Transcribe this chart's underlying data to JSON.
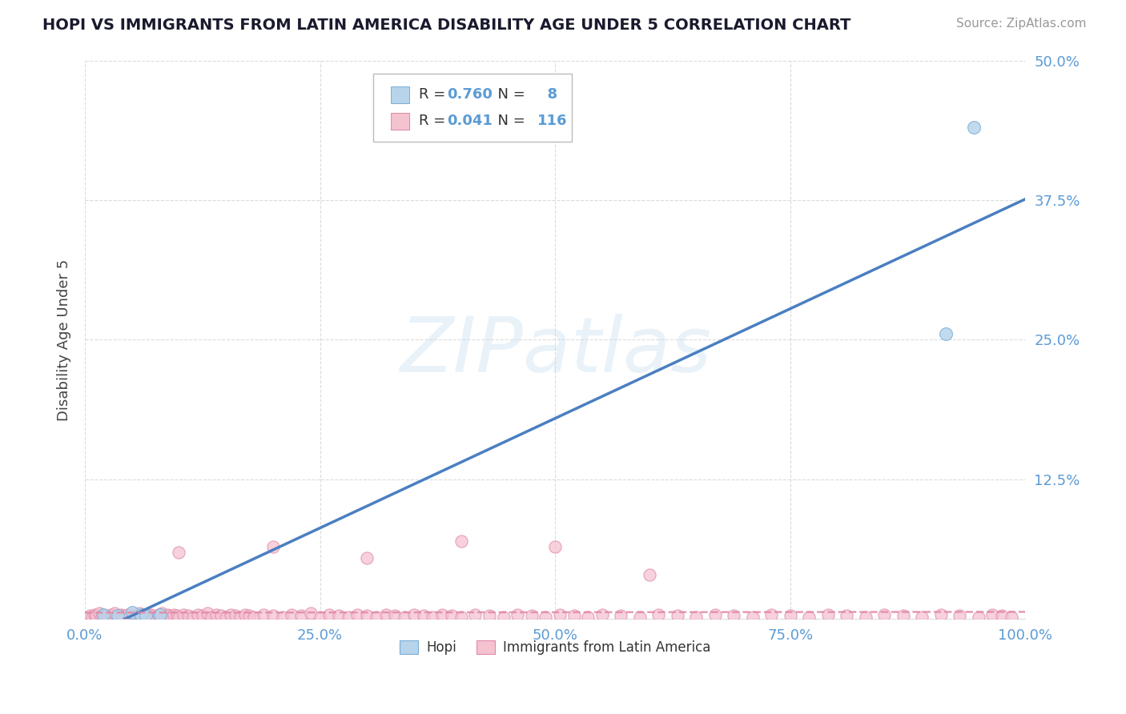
{
  "title": "HOPI VS IMMIGRANTS FROM LATIN AMERICA DISABILITY AGE UNDER 5 CORRELATION CHART",
  "source": "Source: ZipAtlas.com",
  "ylabel": "Disability Age Under 5",
  "xlim": [
    0,
    1.0
  ],
  "ylim": [
    0,
    0.5
  ],
  "yticks": [
    0,
    0.125,
    0.25,
    0.375,
    0.5
  ],
  "ytick_labels": [
    "",
    "12.5%",
    "25.0%",
    "37.5%",
    "50.0%"
  ],
  "xticks": [
    0,
    0.25,
    0.5,
    0.75,
    1.0
  ],
  "xtick_labels": [
    "0.0%",
    "25.0%",
    "50.0%",
    "75.0%",
    "100.0%"
  ],
  "hopi_fill": "#b8d4ea",
  "hopi_edge": "#7aaed6",
  "latin_fill": "#f5c2d0",
  "latin_edge": "#e088a8",
  "trend_blue": "#4a7fc1",
  "trend_pink": "#e088a8",
  "R_hopi": 0.76,
  "N_hopi": 8,
  "R_latin": 0.041,
  "N_latin": 116,
  "watermark": "ZIPatlas",
  "bg": "#ffffff",
  "grid_color": "#cccccc",
  "tick_color": "#5b9bd5",
  "title_color": "#1a1a2e",
  "source_color": "#999999",
  "hopi_x": [
    0.02,
    0.035,
    0.05,
    0.06,
    0.065,
    0.08,
    0.915,
    0.945
  ],
  "hopi_y": [
    0.004,
    0.003,
    0.006,
    0.004,
    0.003,
    0.004,
    0.255,
    0.44
  ],
  "latin_x": [
    0.005,
    0.008,
    0.01,
    0.012,
    0.015,
    0.018,
    0.02,
    0.022,
    0.025,
    0.028,
    0.03,
    0.032,
    0.035,
    0.038,
    0.04,
    0.042,
    0.045,
    0.048,
    0.05,
    0.052,
    0.055,
    0.058,
    0.06,
    0.062,
    0.065,
    0.068,
    0.07,
    0.072,
    0.075,
    0.078,
    0.08,
    0.082,
    0.085,
    0.088,
    0.09,
    0.092,
    0.095,
    0.098,
    0.1,
    0.105,
    0.11,
    0.115,
    0.12,
    0.125,
    0.13,
    0.135,
    0.14,
    0.145,
    0.15,
    0.155,
    0.16,
    0.165,
    0.17,
    0.175,
    0.18,
    0.19,
    0.2,
    0.21,
    0.22,
    0.23,
    0.24,
    0.25,
    0.26,
    0.27,
    0.28,
    0.29,
    0.3,
    0.31,
    0.32,
    0.33,
    0.34,
    0.35,
    0.36,
    0.37,
    0.38,
    0.39,
    0.4,
    0.415,
    0.43,
    0.445,
    0.46,
    0.475,
    0.49,
    0.505,
    0.52,
    0.535,
    0.55,
    0.57,
    0.59,
    0.61,
    0.63,
    0.65,
    0.67,
    0.69,
    0.71,
    0.73,
    0.75,
    0.77,
    0.79,
    0.81,
    0.83,
    0.85,
    0.87,
    0.89,
    0.91,
    0.93,
    0.95,
    0.965,
    0.975,
    0.985,
    0.1,
    0.2,
    0.3,
    0.4,
    0.5,
    0.6
  ],
  "latin_y": [
    0.003,
    0.002,
    0.004,
    0.003,
    0.005,
    0.002,
    0.004,
    0.003,
    0.002,
    0.004,
    0.003,
    0.005,
    0.002,
    0.004,
    0.003,
    0.002,
    0.004,
    0.003,
    0.002,
    0.004,
    0.003,
    0.005,
    0.002,
    0.004,
    0.003,
    0.002,
    0.004,
    0.003,
    0.002,
    0.004,
    0.003,
    0.005,
    0.002,
    0.004,
    0.003,
    0.002,
    0.004,
    0.003,
    0.002,
    0.004,
    0.003,
    0.002,
    0.004,
    0.003,
    0.005,
    0.002,
    0.004,
    0.003,
    0.002,
    0.004,
    0.003,
    0.002,
    0.004,
    0.003,
    0.002,
    0.004,
    0.003,
    0.002,
    0.004,
    0.003,
    0.005,
    0.002,
    0.004,
    0.003,
    0.002,
    0.004,
    0.003,
    0.002,
    0.004,
    0.003,
    0.002,
    0.004,
    0.003,
    0.002,
    0.004,
    0.003,
    0.002,
    0.004,
    0.003,
    0.002,
    0.004,
    0.003,
    0.002,
    0.004,
    0.003,
    0.002,
    0.004,
    0.003,
    0.002,
    0.004,
    0.003,
    0.002,
    0.004,
    0.003,
    0.002,
    0.004,
    0.003,
    0.002,
    0.004,
    0.003,
    0.002,
    0.004,
    0.003,
    0.002,
    0.004,
    0.003,
    0.002,
    0.004,
    0.003,
    0.002,
    0.06,
    0.065,
    0.055,
    0.07,
    0.065,
    0.04
  ]
}
